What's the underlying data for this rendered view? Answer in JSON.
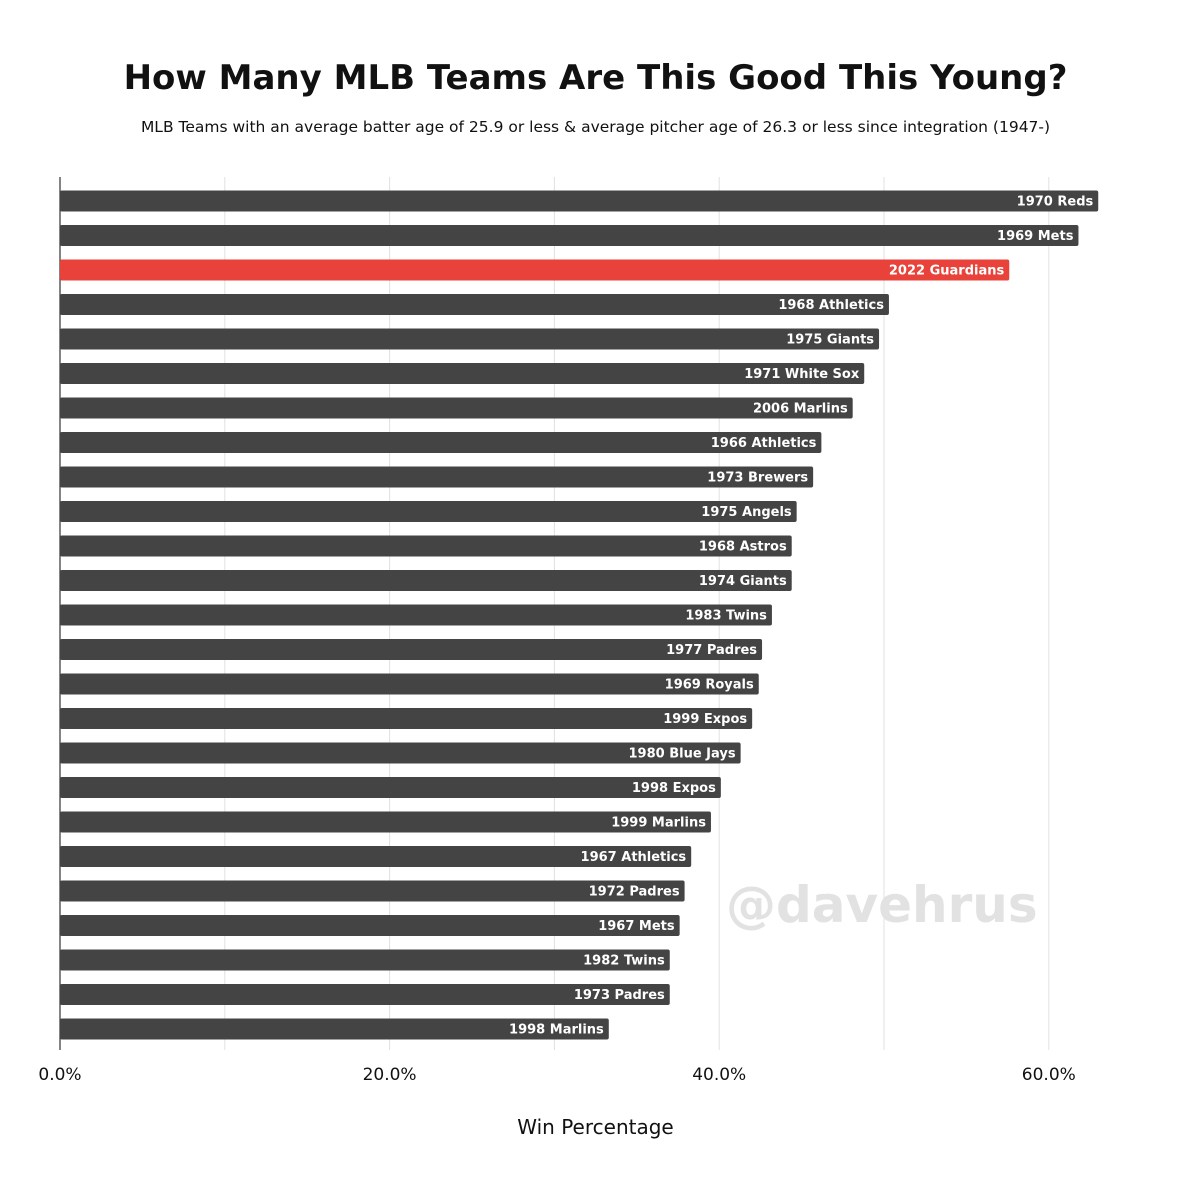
{
  "chart_data": {
    "type": "bar",
    "orientation": "horizontal",
    "title": "How Many MLB Teams Are This Good This Young?",
    "subtitle": "MLB Teams with an average batter age of 25.9 or less & average pitcher age of 26.3 or less since integration (1947-)",
    "xlabel": "Win Percentage",
    "xlim": [
      0,
      0.63
    ],
    "x_ticks": [
      0,
      0.2,
      0.4,
      0.6
    ],
    "x_tick_labels": [
      "0.0%",
      "20.0%",
      "40.0%",
      "60.0%"
    ],
    "grid": true,
    "categories": [
      "1970 Reds",
      "1969 Mets",
      "2022 Guardians",
      "1968 Athletics",
      "1975 Giants",
      "1971 White Sox",
      "2006 Marlins",
      "1966 Athletics",
      "1973 Brewers",
      "1975 Angels",
      "1968 Astros",
      "1974 Giants",
      "1983 Twins",
      "1977 Padres",
      "1969 Royals",
      "1999 Expos",
      "1980 Blue Jays",
      "1998 Expos",
      "1999 Marlins",
      "1967 Athletics",
      "1972 Padres",
      "1967 Mets",
      "1982 Twins",
      "1973 Padres",
      "1998 Marlins"
    ],
    "values": [
      0.63,
      0.618,
      0.576,
      0.503,
      0.497,
      0.488,
      0.481,
      0.462,
      0.457,
      0.447,
      0.444,
      0.444,
      0.432,
      0.426,
      0.424,
      0.42,
      0.413,
      0.401,
      0.395,
      0.383,
      0.379,
      0.376,
      0.37,
      0.37,
      0.333
    ],
    "highlight": "2022 Guardians",
    "colors": {
      "bar": "#444444",
      "highlight": "#e8423a",
      "label": "#ffffff",
      "grid": "#e0e0e0",
      "axis": "#333333"
    }
  },
  "watermark": "@davehrus"
}
